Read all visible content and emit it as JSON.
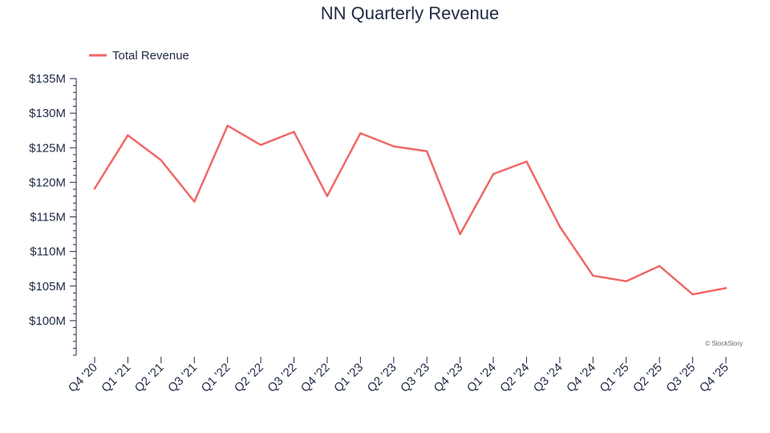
{
  "chart_data": {
    "type": "line",
    "title": "NN Quarterly Revenue",
    "xlabel": "",
    "ylabel": "",
    "categories": [
      "Q4 '20",
      "Q1 '21",
      "Q2 '21",
      "Q3 '21",
      "Q1 '22",
      "Q2 '22",
      "Q3 '22",
      "Q4 '22",
      "Q1 '23",
      "Q2 '23",
      "Q3 '23",
      "Q4 '23",
      "Q1 '24",
      "Q2 '24",
      "Q3 '24",
      "Q4 '24",
      "Q1 '25",
      "Q2 '25",
      "Q3 '25",
      "Q4 '25"
    ],
    "series": [
      {
        "name": "Total Revenue",
        "color": "#f06767",
        "values": [
          119.1,
          126.8,
          123.2,
          117.2,
          128.2,
          125.4,
          127.3,
          118.0,
          127.1,
          125.2,
          124.5,
          112.5,
          121.2,
          123.0,
          113.6,
          106.5,
          105.7,
          107.9,
          103.8,
          104.7
        ]
      }
    ],
    "ylim": [
      95,
      135
    ],
    "yticks": [
      100,
      105,
      110,
      115,
      120,
      125,
      130,
      135
    ],
    "ytick_labels": [
      "$100M",
      "$105M",
      "$110M",
      "$115M",
      "$120M",
      "$125M",
      "$130M",
      "$135M"
    ],
    "legend_position": "top-left",
    "grid": false
  },
  "credit": "© StockStory",
  "colors": {
    "text": "#1f2a44",
    "line": "#f06767"
  }
}
